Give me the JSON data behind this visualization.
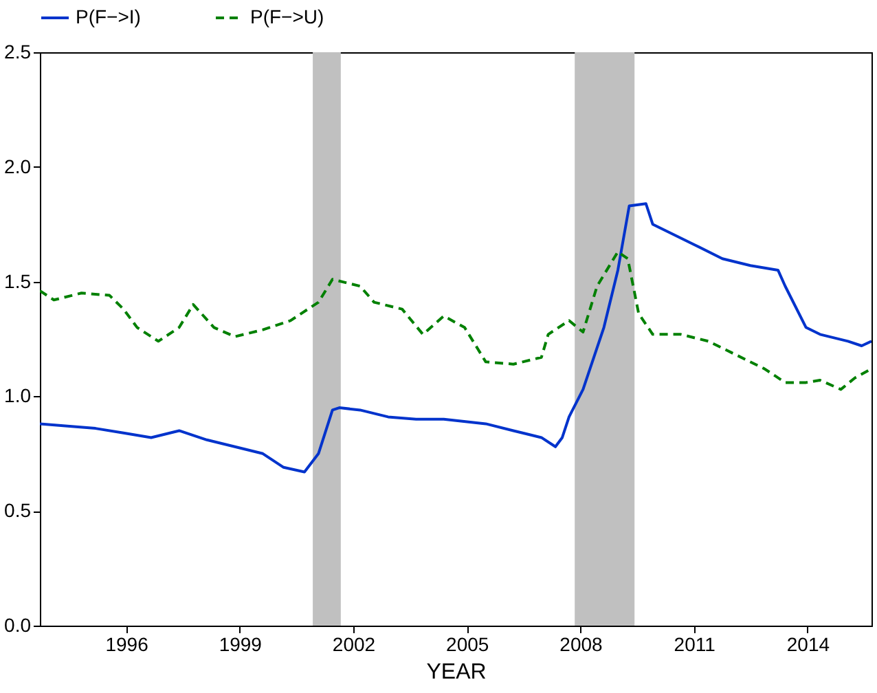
{
  "chart_data": {
    "type": "line",
    "xlabel": "YEAR",
    "xlim": [
      1993.72,
      2015.69
    ],
    "xticks": [
      1996,
      1999,
      2002,
      2005,
      2008,
      2011,
      2014
    ],
    "ylim": [
      0,
      2.5
    ],
    "yticks": [
      {
        "value": 0,
        "label": "0.0"
      },
      {
        "value": 0.5,
        "label": "0.5"
      },
      {
        "value": 1,
        "label": "1.0"
      },
      {
        "value": 1.5,
        "label": "1.5"
      },
      {
        "value": 2,
        "label": "2.0"
      },
      {
        "value": 2.5,
        "label": "2.5"
      }
    ],
    "grid": false,
    "legend": "top",
    "marker": "none",
    "bands": [
      {
        "axis": "x",
        "from": 2000.93,
        "to": 2001.67,
        "color": "#c0c0c0"
      },
      {
        "axis": "x",
        "from": 2007.85,
        "to": 2009.43,
        "color": "#c0c0c0"
      }
    ],
    "series": [
      {
        "name": "P(F−>I)",
        "color": "#0033cc",
        "line_style": "solid",
        "x": [
          1993.72,
          1994.45,
          1995.19,
          1995.93,
          1996.66,
          1997.4,
          1998.13,
          1998.87,
          1999.61,
          2000.16,
          2000.71,
          2001.08,
          2001.45,
          2001.63,
          2002.18,
          2002.92,
          2003.66,
          2004.39,
          2005.5,
          2006.23,
          2006.97,
          2007.34,
          2007.52,
          2007.7,
          2008.07,
          2008.62,
          2008.99,
          2009.29,
          2009.73,
          2009.91,
          2010.28,
          2011.02,
          2011.75,
          2012.49,
          2013.22,
          2013.41,
          2013.96,
          2014.33,
          2015.07,
          2015.43,
          2015.69
        ],
        "values": [
          0.88,
          0.87,
          0.86,
          0.84,
          0.82,
          0.85,
          0.81,
          0.78,
          0.75,
          0.69,
          0.67,
          0.75,
          0.94,
          0.95,
          0.94,
          0.91,
          0.9,
          0.9,
          0.88,
          0.85,
          0.82,
          0.78,
          0.82,
          0.91,
          1.03,
          1.3,
          1.55,
          1.83,
          1.84,
          1.75,
          1.72,
          1.66,
          1.6,
          1.57,
          1.55,
          1.48,
          1.3,
          1.27,
          1.24,
          1.22,
          1.24
        ]
      },
      {
        "name": "P(F−>U)",
        "color": "#008000",
        "line_style": "dashed",
        "x": [
          1993.72,
          1994.09,
          1994.82,
          1995.56,
          1995.93,
          1996.29,
          1996.85,
          1997.4,
          1997.77,
          1998.32,
          1998.87,
          1999.61,
          2000.34,
          2001.08,
          2001.45,
          2002.18,
          2002.55,
          2003.29,
          2003.84,
          2004.39,
          2004.94,
          2005.5,
          2006.23,
          2006.97,
          2007.15,
          2007.7,
          2008.07,
          2008.44,
          2008.99,
          2009.25,
          2009.54,
          2009.91,
          2010.65,
          2011.38,
          2012.12,
          2012.86,
          2013.41,
          2013.96,
          2014.33,
          2014.88,
          2015.25,
          2015.69
        ],
        "values": [
          1.46,
          1.42,
          1.45,
          1.44,
          1.38,
          1.3,
          1.24,
          1.3,
          1.4,
          1.3,
          1.26,
          1.29,
          1.33,
          1.41,
          1.51,
          1.48,
          1.41,
          1.38,
          1.27,
          1.35,
          1.3,
          1.15,
          1.14,
          1.17,
          1.27,
          1.33,
          1.28,
          1.48,
          1.63,
          1.6,
          1.36,
          1.27,
          1.27,
          1.24,
          1.18,
          1.12,
          1.06,
          1.06,
          1.07,
          1.03,
          1.08,
          1.12
        ]
      }
    ]
  }
}
